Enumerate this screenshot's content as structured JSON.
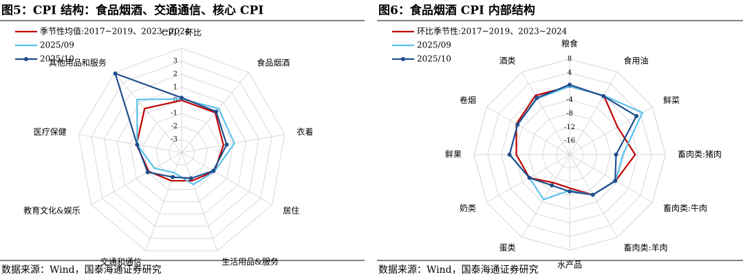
{
  "chart_data": [
    {
      "type": "radar",
      "title": "图5：CPI 结构：食品烟酒、交通通信、核心 CPI",
      "source": "数据来源：Wind，国泰海通证券研究",
      "categories": [
        "CPI：环比",
        "食品烟酒",
        "衣着",
        "居住",
        "生活用品&服务",
        "交通和通信",
        "教育文化&娱乐",
        "医疗保健",
        "其他用品和服务"
      ],
      "rlim": [
        -4,
        4
      ],
      "rticks": [
        -3,
        -2,
        -1,
        0,
        1,
        2,
        3
      ],
      "grid": true,
      "legend": "upper left",
      "series": [
        {
          "name": "季节性均值:2017~2019、2023~2024",
          "color": "#c00000",
          "marker": "none",
          "values": [
            0,
            0,
            -0.75,
            -1.1,
            -1.7,
            -1.7,
            -1.1,
            -0.5,
            0.4
          ]
        },
        {
          "name": "2025/09",
          "color": "#5bc0eb",
          "marker": "none",
          "values": [
            0.1,
            0.4,
            0.1,
            -1.1,
            -1.4,
            -2.35,
            -1.6,
            -0.55,
            1.3
          ]
        },
        {
          "name": "2025/10",
          "color": "#1f4e8c",
          "marker": "circle",
          "values": [
            0.2,
            0.1,
            -0.5,
            -1.2,
            -1.9,
            -2.0,
            -1.0,
            -0.55,
            3.9
          ]
        }
      ]
    },
    {
      "type": "radar",
      "title": "图6：食品烟酒 CPI 内部结构",
      "source": "数据来源：Wind，国泰海通证券研究",
      "categories": [
        "粮食",
        "食用油",
        "鲜菜",
        "畜肉类:猪肉",
        "畜肉类:牛肉",
        "畜肉类:羊肉",
        "水产品",
        "蛋类",
        "奶类",
        "鲜果",
        "卷烟",
        "酒类"
      ],
      "rlim": [
        -20,
        8
      ],
      "rticks": [
        -16,
        -12,
        -8,
        -4,
        0,
        4,
        8
      ],
      "grid": true,
      "legend": "upper left",
      "series": [
        {
          "name": "环比季节性:2017~2019、2023~2024",
          "color": "#c00000",
          "marker": "none",
          "values": [
            0,
            0,
            -3.8,
            -0.8,
            -4.5,
            -6.4,
            -10.2,
            -10.5,
            -6.4,
            -4.4,
            -2,
            0
          ]
        },
        {
          "name": "2025/09",
          "color": "#5bc0eb",
          "marker": "none",
          "values": [
            0,
            0,
            4.6,
            -4.4,
            -4.5,
            -6.4,
            -9.5,
            -4.8,
            -6.4,
            -2.4,
            -2.4,
            -1
          ]
        },
        {
          "name": "2025/10",
          "color": "#1f4e8c",
          "marker": "circle",
          "values": [
            0.5,
            -0.2,
            2.6,
            -6.4,
            -4.6,
            -6.4,
            -9.2,
            -9.6,
            -6.4,
            -2.4,
            -2.4,
            -0.8
          ]
        }
      ]
    }
  ]
}
